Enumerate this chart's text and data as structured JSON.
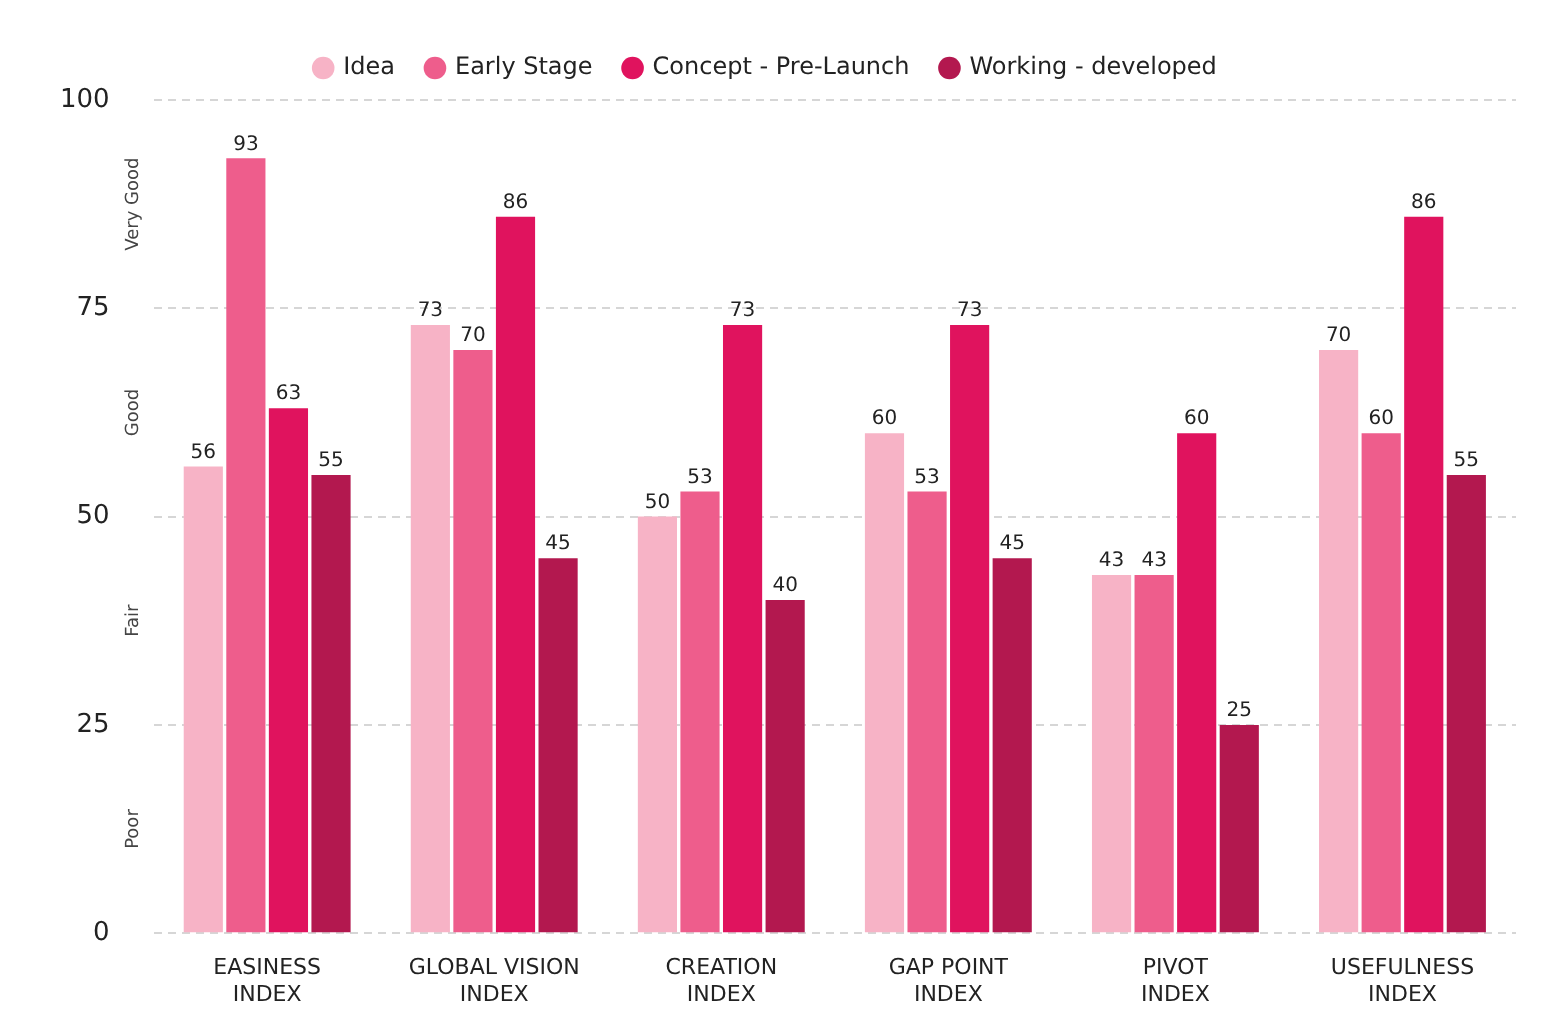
{
  "chart_data": {
    "type": "bar",
    "categories": [
      "EASINESS INDEX",
      "GLOBAL VISION INDEX",
      "CREATION INDEX",
      "GAP POINT INDEX",
      "PIVOT INDEX",
      "USEFULNESS INDEX"
    ],
    "series": [
      {
        "name": "Idea",
        "color": "#f7b3c6",
        "values": [
          56,
          73,
          50,
          60,
          43,
          70
        ]
      },
      {
        "name": "Early Stage",
        "color": "#ee5d8c",
        "values": [
          93,
          70,
          53,
          53,
          43,
          60
        ]
      },
      {
        "name": "Concept - Pre-Launch",
        "color": "#e0135e",
        "values": [
          63,
          86,
          73,
          73,
          60,
          86
        ]
      },
      {
        "name": "Working - developed",
        "color": "#b3184f",
        "values": [
          55,
          45,
          40,
          45,
          25,
          55
        ]
      }
    ],
    "ylim": [
      0,
      100
    ],
    "yticks": [
      0,
      25,
      50,
      75,
      100
    ],
    "annotations": [
      "Very Good",
      "Good",
      "Fair",
      "Poor"
    ],
    "grid": "y",
    "legend": "top",
    "data_labels": true
  }
}
